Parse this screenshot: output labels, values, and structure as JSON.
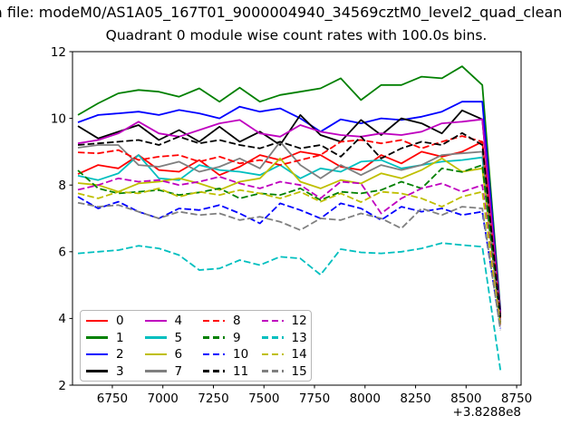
{
  "figure": {
    "suptitle_visible": "a file: modeM0/AS1A05_167T01_9000004940_34569cztM0_level2_quad_clean",
    "axes_title": "Quadrant 0 module wise count rates with 100.0s bins."
  },
  "chart_data": {
    "type": "line",
    "title": "Quadrant 0 module wise count rates with 100.0s bins.",
    "xlabel": "",
    "ylabel": "",
    "bin_seconds": 100.0,
    "grid": false,
    "legend_position": "lower-left",
    "legend_columns": 4,
    "x_offset_text": "+3.8288e8",
    "xlim": [
      6553,
      8772
    ],
    "ylim": [
      2,
      12
    ],
    "x_ticks": [
      6750,
      7000,
      7250,
      7500,
      7750,
      8000,
      8250,
      8500,
      8750
    ],
    "y_ticks": [
      2,
      4,
      6,
      8,
      10,
      12
    ],
    "x": [
      6580,
      6680,
      6780,
      6880,
      6980,
      7080,
      7180,
      7280,
      7380,
      7480,
      7580,
      7680,
      7780,
      7880,
      7980,
      8080,
      8180,
      8280,
      8380,
      8480,
      8580,
      8670
    ],
    "series": [
      {
        "name": "0",
        "color": "#ff0000",
        "style": "solid",
        "values": [
          8.33,
          8.6,
          8.5,
          8.9,
          8.45,
          8.4,
          8.75,
          8.3,
          8.55,
          8.9,
          8.75,
          9.0,
          8.9,
          8.55,
          8.45,
          8.9,
          8.65,
          9.0,
          8.85,
          9.0,
          9.3,
          4.05
        ]
      },
      {
        "name": "1",
        "color": "#008000",
        "style": "solid",
        "values": [
          10.1,
          10.45,
          10.75,
          10.85,
          10.8,
          10.65,
          10.9,
          10.5,
          10.92,
          10.5,
          10.7,
          10.8,
          10.9,
          11.2,
          10.55,
          11.0,
          11.0,
          11.25,
          11.2,
          11.56,
          11.0,
          4.25
        ]
      },
      {
        "name": "2",
        "color": "#0000ff",
        "style": "solid",
        "values": [
          9.88,
          10.1,
          10.15,
          10.2,
          10.1,
          10.25,
          10.15,
          10.0,
          10.35,
          10.2,
          10.3,
          10.0,
          9.6,
          9.97,
          9.85,
          10.0,
          9.95,
          10.05,
          10.2,
          10.5,
          10.5,
          4.2
        ]
      },
      {
        "name": "3",
        "color": "#000000",
        "style": "solid",
        "values": [
          9.77,
          9.4,
          9.6,
          9.8,
          9.35,
          9.65,
          9.3,
          9.75,
          9.3,
          9.6,
          9.2,
          10.1,
          9.5,
          9.3,
          9.95,
          9.5,
          10.0,
          9.85,
          9.55,
          10.24,
          9.97,
          4.15
        ]
      },
      {
        "name": "4",
        "color": "#bf00bf",
        "style": "solid",
        "values": [
          9.25,
          9.35,
          9.55,
          9.9,
          9.55,
          9.45,
          9.65,
          9.85,
          9.95,
          9.55,
          9.45,
          9.8,
          9.6,
          9.5,
          9.45,
          9.55,
          9.5,
          9.6,
          9.85,
          9.9,
          9.97,
          4.1
        ]
      },
      {
        "name": "5",
        "color": "#00bfbf",
        "style": "solid",
        "values": [
          8.28,
          8.15,
          8.35,
          8.9,
          8.2,
          8.15,
          8.6,
          8.45,
          8.4,
          8.3,
          8.6,
          8.2,
          8.5,
          8.4,
          8.7,
          8.75,
          8.5,
          8.6,
          8.7,
          8.75,
          8.83,
          3.9
        ]
      },
      {
        "name": "6",
        "color": "#bfbf00",
        "style": "solid",
        "values": [
          8.06,
          8.0,
          7.8,
          8.05,
          8.1,
          8.2,
          8.05,
          7.85,
          8.1,
          8.2,
          8.8,
          8.1,
          7.9,
          8.15,
          8.05,
          8.35,
          8.2,
          8.45,
          8.8,
          8.4,
          8.5,
          3.9
        ]
      },
      {
        "name": "7",
        "color": "#7f7f7f",
        "style": "solid",
        "values": [
          9.12,
          9.2,
          9.2,
          8.6,
          8.55,
          8.7,
          8.4,
          8.55,
          8.8,
          8.5,
          9.3,
          8.6,
          8.2,
          8.6,
          8.3,
          8.6,
          8.45,
          8.6,
          8.9,
          8.95,
          9.0,
          3.95
        ]
      },
      {
        "name": "8",
        "color": "#ff0000",
        "style": "dashed",
        "values": [
          8.98,
          8.95,
          9.05,
          8.75,
          8.85,
          8.9,
          8.7,
          8.85,
          8.65,
          8.75,
          8.6,
          8.75,
          8.9,
          9.3,
          9.35,
          9.25,
          9.35,
          9.1,
          9.3,
          9.47,
          9.3,
          4.0
        ]
      },
      {
        "name": "9",
        "color": "#008000",
        "style": "dashed",
        "values": [
          8.44,
          7.9,
          7.75,
          7.8,
          7.85,
          7.7,
          7.78,
          7.9,
          7.6,
          7.75,
          7.7,
          7.9,
          7.55,
          7.8,
          7.75,
          7.85,
          8.1,
          7.9,
          8.5,
          8.39,
          8.6,
          3.85
        ]
      },
      {
        "name": "10",
        "color": "#0000ff",
        "style": "dashed",
        "values": [
          7.65,
          7.3,
          7.5,
          7.2,
          7.0,
          7.3,
          7.25,
          7.4,
          7.15,
          6.85,
          7.45,
          7.25,
          7.0,
          7.45,
          7.3,
          6.95,
          7.35,
          7.2,
          7.3,
          7.1,
          7.2,
          3.7
        ]
      },
      {
        "name": "11",
        "color": "#000000",
        "style": "dashed",
        "values": [
          9.2,
          9.25,
          9.3,
          9.35,
          9.2,
          9.45,
          9.25,
          9.35,
          9.2,
          9.1,
          9.3,
          9.1,
          9.2,
          8.85,
          9.45,
          8.8,
          9.1,
          9.3,
          9.2,
          9.56,
          9.2,
          4.05
        ]
      },
      {
        "name": "12",
        "color": "#bf00bf",
        "style": "dashed",
        "values": [
          7.86,
          8.0,
          8.2,
          8.1,
          8.15,
          8.0,
          8.1,
          8.25,
          8.05,
          7.9,
          8.1,
          8.0,
          7.6,
          8.1,
          8.05,
          7.15,
          7.6,
          7.9,
          8.05,
          7.8,
          8.0,
          3.8
        ]
      },
      {
        "name": "13",
        "color": "#00bfbf",
        "style": "dashed",
        "values": [
          5.95,
          6.0,
          6.05,
          6.18,
          6.1,
          5.9,
          5.45,
          5.5,
          5.75,
          5.6,
          5.85,
          5.8,
          5.31,
          6.08,
          5.98,
          5.95,
          6.0,
          6.1,
          6.26,
          6.2,
          6.15,
          2.45
        ]
      },
      {
        "name": "14",
        "color": "#bfbf00",
        "style": "dashed",
        "values": [
          7.75,
          7.6,
          7.8,
          7.75,
          7.9,
          7.65,
          7.8,
          7.7,
          7.85,
          7.75,
          7.6,
          7.8,
          7.5,
          7.75,
          7.49,
          7.8,
          7.75,
          7.6,
          7.35,
          7.65,
          7.8,
          3.75
        ]
      },
      {
        "name": "15",
        "color": "#7f7f7f",
        "style": "dashed",
        "values": [
          7.47,
          7.35,
          7.4,
          7.2,
          7.0,
          7.2,
          7.1,
          7.15,
          6.95,
          7.05,
          6.9,
          6.65,
          7.0,
          6.95,
          7.15,
          7.0,
          6.7,
          7.3,
          7.1,
          7.35,
          7.3,
          3.65
        ]
      }
    ]
  }
}
